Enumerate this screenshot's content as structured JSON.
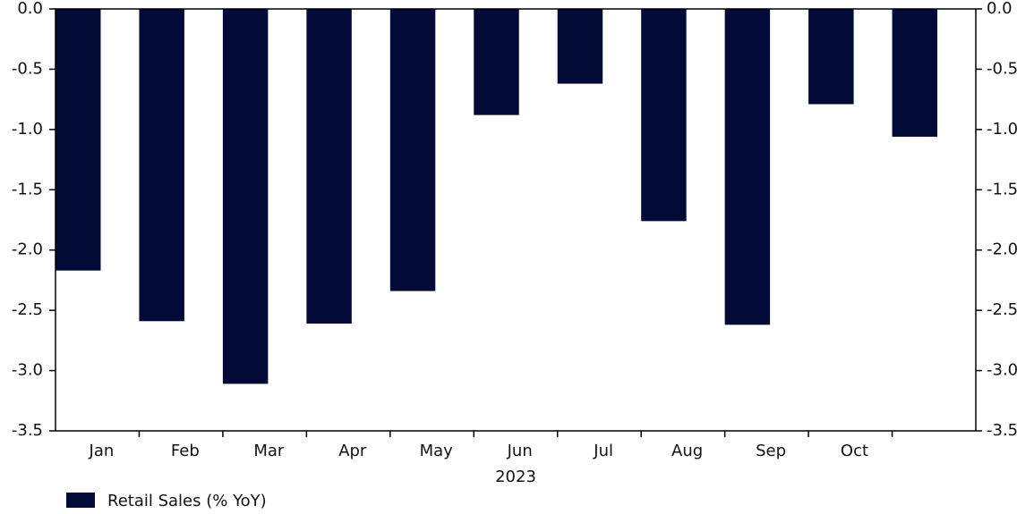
{
  "chart_data": {
    "type": "bar",
    "x_label": "2023",
    "categories": [
      "Jan",
      "Feb",
      "Mar",
      "Apr",
      "May",
      "Jun",
      "Jul",
      "Aug",
      "Sep",
      "Oct",
      null
    ],
    "series": [
      {
        "name": "Retail Sales (% YoY)",
        "color": "#020b38",
        "values": [
          -2.17,
          -2.59,
          -3.11,
          -2.61,
          -2.34,
          -0.88,
          -0.62,
          -1.76,
          -2.62,
          -0.79,
          -1.06
        ]
      }
    ],
    "ylim": [
      -3.5,
      0
    ],
    "yticks": [
      {
        "value": 0,
        "label": "0.0"
      },
      -0.5,
      {
        "value": -1,
        "label": "-1.0"
      },
      -1.5,
      {
        "value": -2,
        "label": "-2.0"
      },
      -2.5,
      {
        "value": -3,
        "label": "-3.0"
      },
      -3.5
    ],
    "y_axis_both_sides": true
  }
}
